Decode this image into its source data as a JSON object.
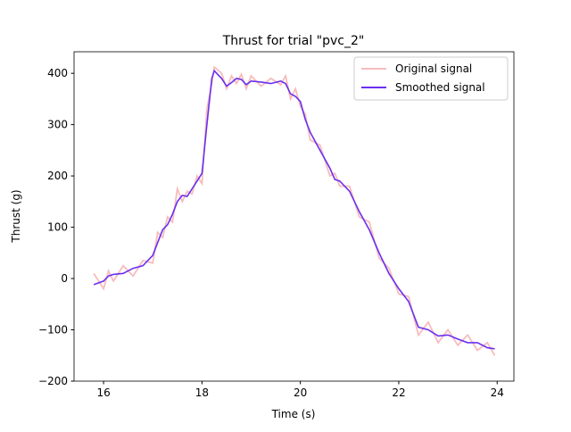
{
  "chart_data": {
    "type": "line",
    "title": "Thrust for trial \"pvc_2\"",
    "x_label": "Time (s)",
    "y_label": "Thrust (g)",
    "x": [
      15.8,
      16.0,
      16.1,
      16.2,
      16.4,
      16.6,
      16.8,
      17.0,
      17.1,
      17.2,
      17.3,
      17.4,
      17.5,
      17.6,
      17.7,
      17.8,
      17.9,
      18.0,
      18.1,
      18.2,
      18.25,
      18.4,
      18.5,
      18.6,
      18.7,
      18.8,
      18.9,
      19.0,
      19.2,
      19.4,
      19.6,
      19.7,
      19.8,
      19.9,
      20.0,
      20.1,
      20.2,
      20.4,
      20.6,
      20.7,
      20.8,
      21.0,
      21.2,
      21.4,
      21.6,
      21.8,
      22.0,
      22.2,
      22.4,
      22.6,
      22.8,
      23.0,
      23.2,
      23.4,
      23.6,
      23.8,
      23.95
    ],
    "series": [
      {
        "name": "Original signal",
        "color": "#f7bcbc",
        "values": [
          10,
          -20,
          15,
          -5,
          25,
          5,
          35,
          30,
          90,
          80,
          120,
          110,
          175,
          150,
          170,
          165,
          200,
          185,
          330,
          380,
          412,
          400,
          370,
          395,
          380,
          398,
          370,
          395,
          375,
          390,
          378,
          395,
          350,
          370,
          335,
          320,
          270,
          260,
          200,
          205,
          180,
          180,
          120,
          110,
          40,
          20,
          -30,
          -35,
          -110,
          -85,
          -125,
          -100,
          -130,
          -110,
          -140,
          -125,
          -150
        ]
      },
      {
        "name": "Smoothed signal",
        "color": "#6a2ff0",
        "values": [
          -12,
          -5,
          5,
          8,
          10,
          20,
          25,
          45,
          70,
          95,
          105,
          125,
          150,
          162,
          160,
          175,
          190,
          205,
          300,
          390,
          405,
          390,
          375,
          382,
          390,
          388,
          378,
          385,
          383,
          380,
          385,
          380,
          360,
          355,
          345,
          310,
          285,
          250,
          215,
          193,
          190,
          170,
          130,
          95,
          50,
          10,
          -20,
          -45,
          -95,
          -100,
          -112,
          -110,
          -118,
          -125,
          -125,
          -135,
          -137
        ]
      }
    ],
    "xlim": [
      15.4,
      24.34
    ],
    "ylim": [
      -200,
      442
    ],
    "xticks": [
      16,
      18,
      20,
      22,
      24
    ],
    "yticks": [
      {
        "value": -200,
        "label": "−200"
      },
      {
        "value": -100,
        "label": "−100"
      },
      0,
      100,
      200,
      300,
      400
    ],
    "legend": "upper right",
    "grid": false
  }
}
